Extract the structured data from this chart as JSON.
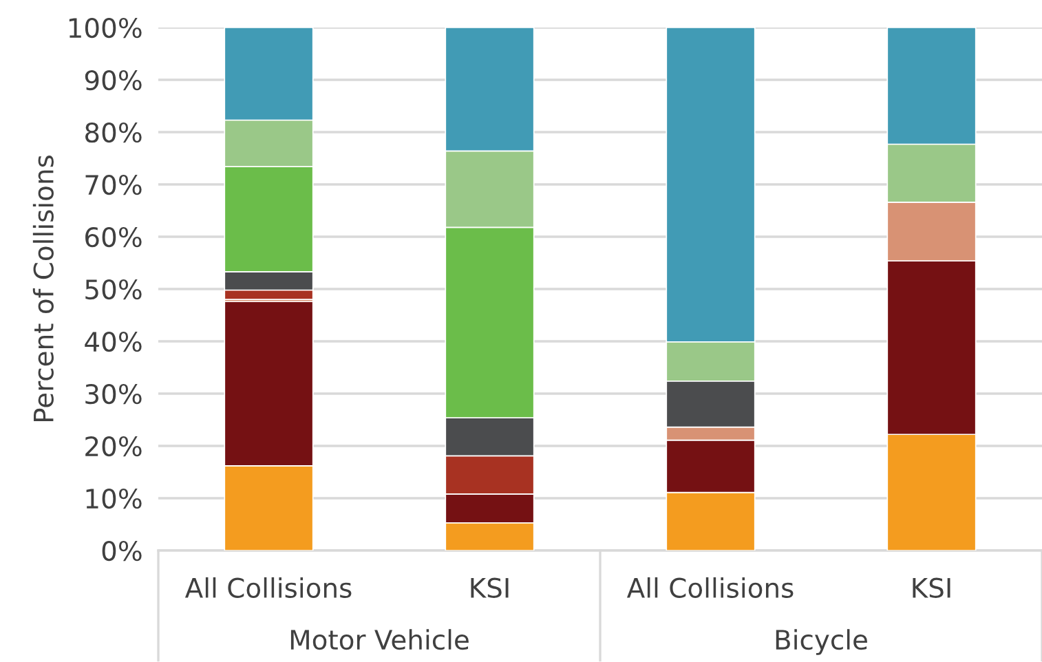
{
  "chart_data": {
    "type": "bar",
    "stacked": true,
    "ylabel": "Percent of Collisions",
    "categories": [
      "All Collisions",
      "KSI",
      "All Collisions",
      "KSI"
    ],
    "series": [
      {
        "color": "#f49c1f",
        "values": [
          16.2,
          5.3,
          11.1,
          22.2
        ]
      },
      {
        "color": "#751113",
        "values": [
          31.4,
          5.5,
          10.0,
          33.2
        ]
      },
      {
        "color": "#d89274",
        "values": [
          0.4,
          null,
          2.5,
          11.2
        ]
      },
      {
        "color": "#a83222",
        "values": [
          1.8,
          7.3,
          null,
          null
        ]
      },
      {
        "color": "#4b4c4e",
        "values": [
          3.5,
          7.3,
          8.8,
          null
        ]
      },
      {
        "color": "#6bbd4a",
        "values": [
          20.1,
          36.4,
          null,
          null
        ]
      },
      {
        "color": "#9ac888",
        "values": [
          8.9,
          14.6,
          7.5,
          11.1
        ]
      },
      {
        "color": "#419bb5",
        "values": [
          17.7,
          23.6,
          60.1,
          22.3
        ]
      }
    ],
    "ylim": [
      0,
      100
    ],
    "yticks": [
      {
        "value": 0,
        "label": "0%"
      },
      {
        "value": 10,
        "label": "10%"
      },
      {
        "value": 20,
        "label": "20%"
      },
      {
        "value": 30,
        "label": "30%"
      },
      {
        "value": 40,
        "label": "40%"
      },
      {
        "value": 50,
        "label": "50%"
      },
      {
        "value": 60,
        "label": "60%"
      },
      {
        "value": 70,
        "label": "70%"
      },
      {
        "value": 80,
        "label": "80%"
      },
      {
        "value": 90,
        "label": "90%"
      },
      {
        "value": 100,
        "label": "100%"
      }
    ],
    "annotations": [
      "Motor Vehicle",
      "Bicycle"
    ],
    "grid": "y",
    "legend": false
  }
}
